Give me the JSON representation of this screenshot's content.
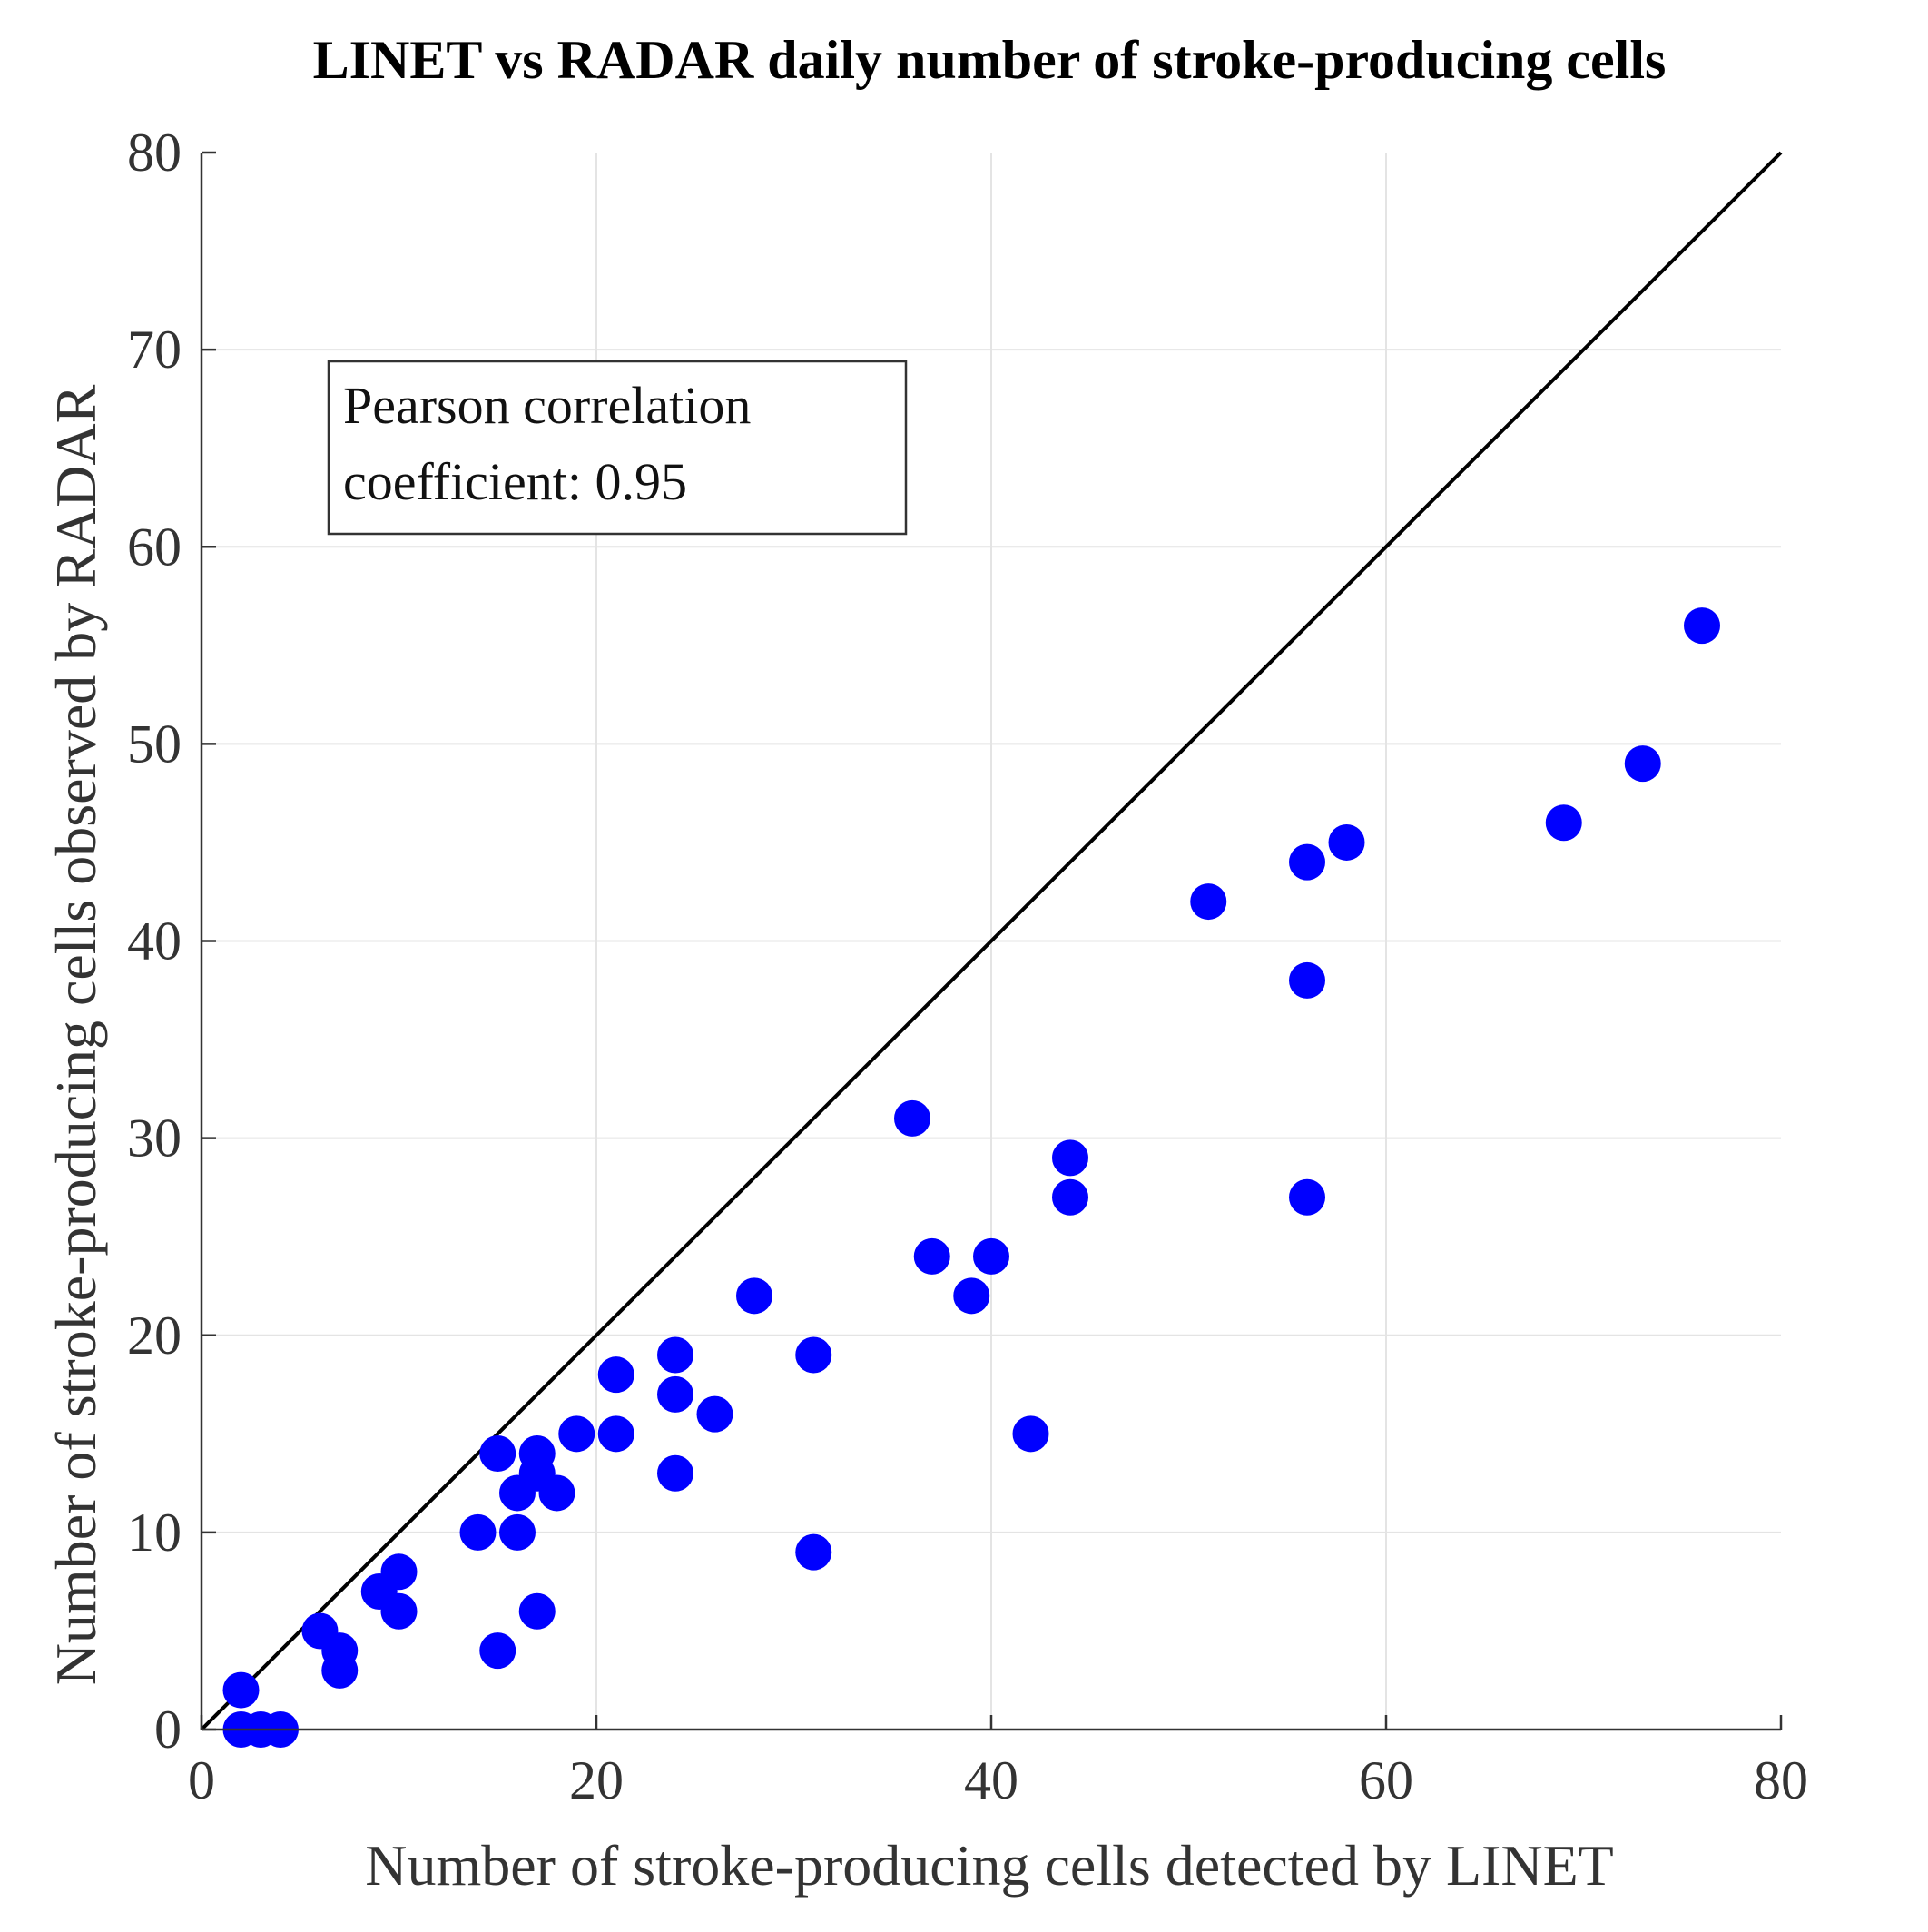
{
  "chart_data": {
    "type": "scatter",
    "title": "LINET vs RADAR daily number of stroke-producing cells",
    "xlabel": "Number of stroke-producing cells detected by LINET",
    "ylabel": "Number of stroke-producing cells observed by RADAR",
    "xlim": [
      0,
      80
    ],
    "ylim": [
      0,
      80
    ],
    "xticks": [
      0,
      20,
      40,
      60,
      80
    ],
    "yticks": [
      0,
      10,
      20,
      30,
      40,
      50,
      60,
      70,
      80
    ],
    "grid": true,
    "reference_line": {
      "name": "1:1 line",
      "x": [
        0,
        80
      ],
      "y": [
        0,
        80
      ]
    },
    "annotation": [
      "Pearson correlation",
      "coefficient: 0.95"
    ],
    "marker_color": "#0000ff",
    "series": [
      {
        "name": "daily cells",
        "points": [
          [
            2,
            2
          ],
          [
            2,
            0
          ],
          [
            3,
            0
          ],
          [
            4,
            0
          ],
          [
            6,
            5
          ],
          [
            7,
            4
          ],
          [
            7,
            3
          ],
          [
            9,
            7
          ],
          [
            10,
            8
          ],
          [
            10,
            6
          ],
          [
            14,
            10
          ],
          [
            15,
            14
          ],
          [
            15,
            4
          ],
          [
            16,
            12
          ],
          [
            16,
            10
          ],
          [
            17,
            14
          ],
          [
            17,
            13
          ],
          [
            17,
            6
          ],
          [
            18,
            12
          ],
          [
            19,
            15
          ],
          [
            21,
            18
          ],
          [
            21,
            15
          ],
          [
            24,
            19
          ],
          [
            24,
            17
          ],
          [
            24,
            13
          ],
          [
            26,
            16
          ],
          [
            28,
            22
          ],
          [
            31,
            19
          ],
          [
            31,
            9
          ],
          [
            36,
            31
          ],
          [
            37,
            24
          ],
          [
            39,
            22
          ],
          [
            40,
            24
          ],
          [
            42,
            15
          ],
          [
            44,
            29
          ],
          [
            44,
            27
          ],
          [
            51,
            42
          ],
          [
            56,
            44
          ],
          [
            56,
            38
          ],
          [
            56,
            27
          ],
          [
            58,
            45
          ],
          [
            69,
            46
          ],
          [
            73,
            49
          ],
          [
            76,
            56
          ]
        ]
      }
    ]
  }
}
